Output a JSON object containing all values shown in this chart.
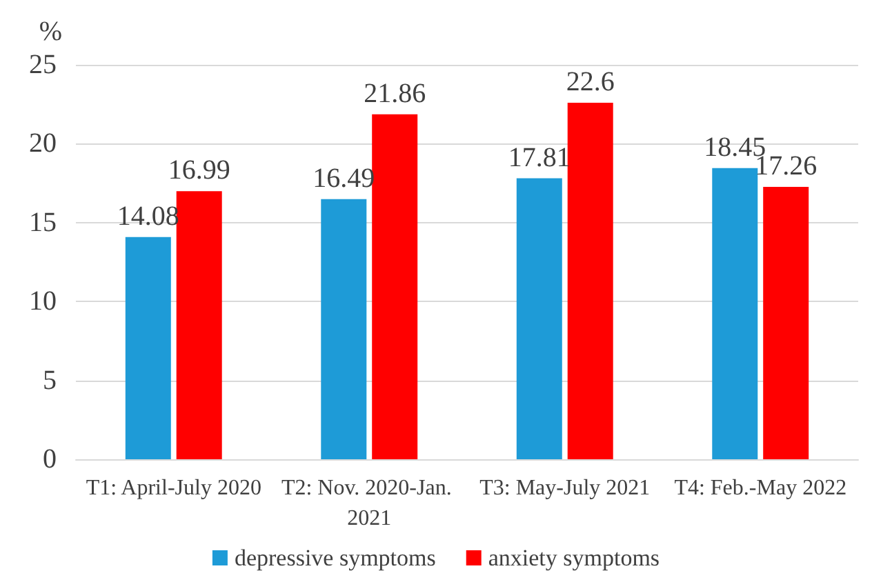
{
  "chart_data": {
    "type": "bar",
    "ylabel": "%",
    "categories": [
      "T1: April-July 2020",
      "T2: Nov. 2020-Jan. 2021",
      "T3: May-July 2021",
      "T4: Feb.-May 2022"
    ],
    "series": [
      {
        "name": "depressive symptoms",
        "color": "#1e9bd7",
        "values": [
          14.08,
          16.49,
          17.81,
          18.45
        ]
      },
      {
        "name": "anxiety symptoms",
        "color": "#ff0000",
        "values": [
          16.99,
          21.86,
          22.6,
          17.26
        ]
      }
    ],
    "ylim": [
      0,
      25
    ],
    "yticks": [
      0,
      5,
      10,
      15,
      20,
      25
    ],
    "grid": "y",
    "legend": "bottom",
    "data_labels": true
  }
}
